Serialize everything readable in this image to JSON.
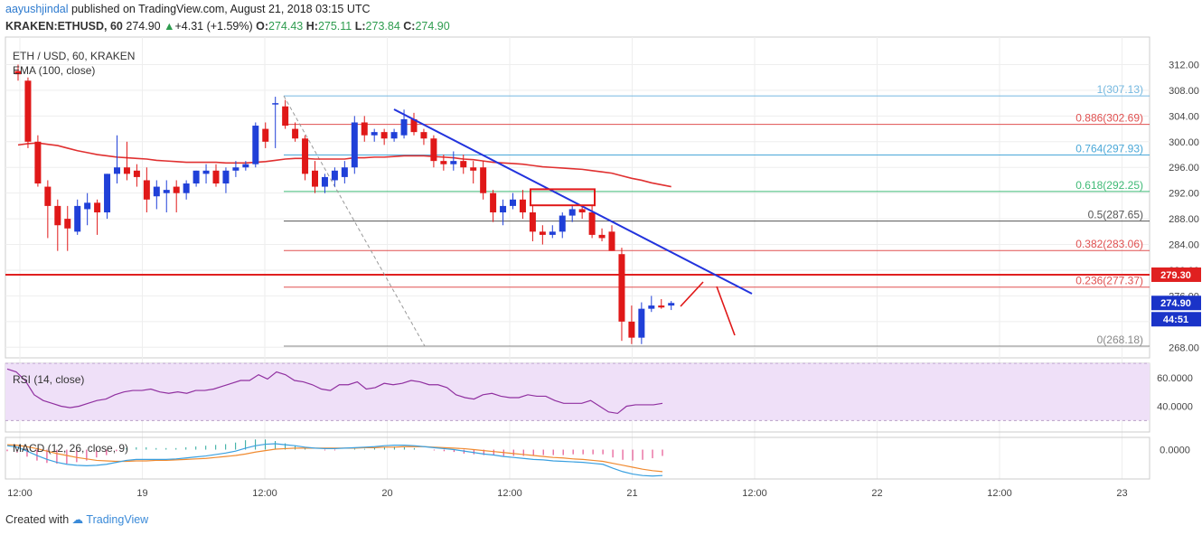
{
  "header": {
    "author": "aayushjindal",
    "published_text": "published on TradingView.com, August 21, 2018 03:15 UTC",
    "symbol_line": "KRAKEN:ETHUSD, 60",
    "last": "274.90",
    "change_arrow": "▲",
    "change": "+4.31 (+1.59%)",
    "o_label": "O:",
    "o": "274.43",
    "h_label": "H:",
    "h": "275.11",
    "l_label": "L:",
    "l": "273.84",
    "c_label": "C:",
    "c": "274.90"
  },
  "footer": {
    "created_with": "Created with",
    "brand": "TradingView"
  },
  "chart_data": [
    {
      "type": "candlestick",
      "title": "ETH / USD, 60, KRAKEN",
      "indicator_label": "EMA (100, close)",
      "y_ticks": [
        "312.00",
        "308.00",
        "304.00",
        "300.00",
        "296.00",
        "292.00",
        "288.00",
        "284.00",
        "280.00",
        "276.00",
        "272.00",
        "268.00"
      ],
      "ylim": [
        267,
        313.5
      ],
      "x_ticks": [
        "12:00",
        "19",
        "12:00",
        "20",
        "12:00",
        "21",
        "12:00",
        "22",
        "12:00",
        "23"
      ],
      "price_tags": {
        "resistance": "279.30",
        "last": "274.90",
        "countdown": "44:51"
      },
      "resistance_level": 279.3,
      "fibonacci": [
        {
          "label": "1(307.13)",
          "value": 307.13,
          "color": "#74b8e0"
        },
        {
          "label": "0.886(302.69)",
          "value": 302.69,
          "color": "#e05050"
        },
        {
          "label": "0.764(297.93)",
          "value": 297.93,
          "color": "#4aa8d8"
        },
        {
          "label": "0.618(292.25)",
          "value": 292.25,
          "color": "#3fba76"
        },
        {
          "label": "0.5(287.65)",
          "value": 287.65,
          "color": "#555555"
        },
        {
          "label": "0.382(283.06)",
          "value": 283.06,
          "color": "#e05050"
        },
        {
          "label": "0.236(277.37)",
          "value": 277.37,
          "color": "#e05050"
        },
        {
          "label": "0(268.18)",
          "value": 268.18,
          "color": "#888888"
        }
      ],
      "candles": [
        {
          "o": 311,
          "h": 312,
          "l": 309.5,
          "c": 310.5
        },
        {
          "o": 309.5,
          "h": 310,
          "l": 299,
          "c": 300
        },
        {
          "o": 300,
          "h": 301,
          "l": 293,
          "c": 293.5
        },
        {
          "o": 293,
          "h": 294,
          "l": 285,
          "c": 290
        },
        {
          "o": 290,
          "h": 291,
          "l": 283,
          "c": 287
        },
        {
          "o": 288,
          "h": 290,
          "l": 283,
          "c": 286.5
        },
        {
          "o": 286,
          "h": 291,
          "l": 285.5,
          "c": 290
        },
        {
          "o": 289.5,
          "h": 292,
          "l": 287,
          "c": 290.5
        },
        {
          "o": 290.5,
          "h": 291,
          "l": 285.5,
          "c": 289
        },
        {
          "o": 289,
          "h": 295,
          "l": 288,
          "c": 295
        },
        {
          "o": 295,
          "h": 301,
          "l": 293.5,
          "c": 296
        },
        {
          "o": 296,
          "h": 300,
          "l": 294,
          "c": 295
        },
        {
          "o": 295.5,
          "h": 296.5,
          "l": 293,
          "c": 294.5
        },
        {
          "o": 294,
          "h": 296,
          "l": 289,
          "c": 291
        },
        {
          "o": 291.5,
          "h": 294,
          "l": 289.5,
          "c": 293
        },
        {
          "o": 292,
          "h": 294,
          "l": 289,
          "c": 292.5
        },
        {
          "o": 293,
          "h": 294,
          "l": 289,
          "c": 292
        },
        {
          "o": 292,
          "h": 294,
          "l": 291,
          "c": 293.5
        },
        {
          "o": 293.5,
          "h": 295.5,
          "l": 293,
          "c": 295.5
        },
        {
          "o": 295,
          "h": 296.5,
          "l": 293.5,
          "c": 295.5
        },
        {
          "o": 295.5,
          "h": 296.5,
          "l": 293,
          "c": 293.5
        },
        {
          "o": 293.5,
          "h": 296,
          "l": 292,
          "c": 295.5
        },
        {
          "o": 295.5,
          "h": 297,
          "l": 294.5,
          "c": 296
        },
        {
          "o": 296,
          "h": 297,
          "l": 295.5,
          "c": 296.5
        },
        {
          "o": 296.5,
          "h": 303,
          "l": 296,
          "c": 302.5
        },
        {
          "o": 302,
          "h": 303,
          "l": 299,
          "c": 300
        },
        {
          "o": 306,
          "h": 307,
          "l": 299,
          "c": 306
        },
        {
          "o": 305.5,
          "h": 306.5,
          "l": 302,
          "c": 302.5
        },
        {
          "o": 302,
          "h": 303,
          "l": 300,
          "c": 300.5
        },
        {
          "o": 300.5,
          "h": 301,
          "l": 294,
          "c": 295
        },
        {
          "o": 295.5,
          "h": 297,
          "l": 292,
          "c": 293
        },
        {
          "o": 293,
          "h": 295,
          "l": 292,
          "c": 294.5
        },
        {
          "o": 294,
          "h": 296,
          "l": 293,
          "c": 295.5
        },
        {
          "o": 294.5,
          "h": 297,
          "l": 293.5,
          "c": 296
        },
        {
          "o": 296,
          "h": 304,
          "l": 295,
          "c": 303
        },
        {
          "o": 303,
          "h": 304,
          "l": 300,
          "c": 301
        },
        {
          "o": 301,
          "h": 302,
          "l": 300,
          "c": 301.5
        },
        {
          "o": 301.5,
          "h": 302,
          "l": 299.5,
          "c": 300.5
        },
        {
          "o": 300.5,
          "h": 302,
          "l": 300,
          "c": 301.5
        },
        {
          "o": 301,
          "h": 305,
          "l": 300.5,
          "c": 303.5
        },
        {
          "o": 303.5,
          "h": 304.5,
          "l": 301,
          "c": 301.5
        },
        {
          "o": 301.5,
          "h": 302,
          "l": 299.5,
          "c": 300.5
        },
        {
          "o": 300.5,
          "h": 301,
          "l": 296,
          "c": 297
        },
        {
          "o": 297,
          "h": 298,
          "l": 295.5,
          "c": 296.5
        },
        {
          "o": 296.5,
          "h": 298.5,
          "l": 295.5,
          "c": 297
        },
        {
          "o": 297,
          "h": 298,
          "l": 295,
          "c": 296
        },
        {
          "o": 296,
          "h": 297,
          "l": 293.5,
          "c": 295.5
        },
        {
          "o": 296,
          "h": 297,
          "l": 291,
          "c": 292
        },
        {
          "o": 292,
          "h": 292.5,
          "l": 287.5,
          "c": 289
        },
        {
          "o": 289,
          "h": 291,
          "l": 287,
          "c": 290
        },
        {
          "o": 290,
          "h": 292,
          "l": 289.5,
          "c": 291
        },
        {
          "o": 291,
          "h": 292.5,
          "l": 288,
          "c": 289
        },
        {
          "o": 289,
          "h": 290,
          "l": 284.5,
          "c": 286
        },
        {
          "o": 286,
          "h": 287,
          "l": 284,
          "c": 285.5
        },
        {
          "o": 285.5,
          "h": 287,
          "l": 285,
          "c": 286
        },
        {
          "o": 286,
          "h": 289,
          "l": 285,
          "c": 288.5
        },
        {
          "o": 288.5,
          "h": 290,
          "l": 287.5,
          "c": 289.5
        },
        {
          "o": 289.5,
          "h": 290,
          "l": 288,
          "c": 289
        },
        {
          "o": 289,
          "h": 290,
          "l": 285,
          "c": 285.5
        },
        {
          "o": 285.5,
          "h": 286.5,
          "l": 284.5,
          "c": 285
        },
        {
          "o": 286,
          "h": 287,
          "l": 283,
          "c": 283
        },
        {
          "o": 282.5,
          "h": 283.5,
          "l": 269,
          "c": 272
        },
        {
          "o": 272,
          "h": 274.5,
          "l": 268.5,
          "c": 269.5
        },
        {
          "o": 269.5,
          "h": 275,
          "l": 268.5,
          "c": 274
        },
        {
          "o": 274,
          "h": 276,
          "l": 273.5,
          "c": 274.5
        },
        {
          "o": 274.5,
          "h": 275.5,
          "l": 274,
          "c": 274.2
        },
        {
          "o": 274.5,
          "h": 275.2,
          "l": 273.8,
          "c": 274.9
        }
      ],
      "ema": [
        299.5,
        299.7,
        299.8,
        299.6,
        299.4,
        299.0,
        298.6,
        298.3,
        298.0,
        297.8,
        297.6,
        297.5,
        297.4,
        297.3,
        297.1,
        297.0,
        296.9,
        296.8,
        296.8,
        296.8,
        296.8,
        296.7,
        296.7,
        296.7,
        296.8,
        296.9,
        297.1,
        297.3,
        297.4,
        297.4,
        297.3,
        297.3,
        297.3,
        297.3,
        297.5,
        297.5,
        297.6,
        297.6,
        297.7,
        297.8,
        297.8,
        297.8,
        297.7,
        297.6,
        297.5,
        297.3,
        297.2,
        297.0,
        296.8,
        296.7,
        296.6,
        296.5,
        296.3,
        296.1,
        296.0,
        295.9,
        295.8,
        295.7,
        295.5,
        295.3,
        295.1,
        294.7,
        294.3,
        294.0,
        293.6,
        293.3,
        293.0
      ],
      "trendline": {
        "from": [
          436,
          121
        ],
        "to": [
          832,
          325
        ]
      },
      "annotation_box": {
        "x": [
          587,
          658
        ],
        "y": [
          292.6,
          290.1
        ]
      }
    },
    {
      "type": "line",
      "title": "RSI (14, close)",
      "y_ticks": [
        "60.0000",
        "40.0000"
      ],
      "ylim": [
        22,
        70
      ],
      "band": [
        30,
        70
      ],
      "values": [
        66,
        64,
        58,
        48,
        44,
        42,
        40,
        39,
        40,
        42,
        44,
        45,
        48,
        50,
        51,
        51,
        52,
        50,
        49,
        50,
        49,
        51,
        51,
        52,
        54,
        56,
        58,
        58,
        62,
        59,
        64,
        62,
        58,
        57,
        55,
        52,
        51,
        55,
        55,
        57,
        52,
        53,
        56,
        55,
        56,
        58,
        57,
        55,
        55,
        53,
        48,
        46,
        45,
        48,
        49,
        47,
        46,
        46,
        48,
        47,
        47,
        44,
        42,
        42,
        42,
        44,
        40,
        36,
        35,
        40,
        41,
        41,
        41,
        42
      ]
    },
    {
      "type": "line",
      "title": "MACD (12, 26, close, 9)",
      "y_ticks": [
        "0.0000"
      ],
      "ylim": [
        -6,
        2.5
      ],
      "macd": [
        0.8,
        0.5,
        -0.3,
        -1.2,
        -2.0,
        -2.6,
        -3.0,
        -3.2,
        -3.3,
        -3.2,
        -3.0,
        -2.6,
        -2.2,
        -2.0,
        -2.0,
        -2.0,
        -2.0,
        -1.9,
        -1.7,
        -1.5,
        -1.3,
        -1.0,
        -0.7,
        -0.3,
        0.3,
        0.8,
        1.1,
        1.2,
        1.0,
        0.8,
        0.5,
        0.3,
        0.2,
        0.2,
        0.3,
        0.4,
        0.5,
        0.6,
        0.8,
        0.9,
        0.9,
        0.8,
        0.6,
        0.4,
        0.2,
        0.0,
        -0.3,
        -0.6,
        -0.9,
        -1.1,
        -1.4,
        -1.6,
        -1.8,
        -2.0,
        -2.1,
        -2.3,
        -2.4,
        -2.5,
        -2.6,
        -2.8,
        -3.0,
        -3.8,
        -4.5,
        -5.0,
        -5.3,
        -5.4,
        -5.3
      ],
      "signal": [
        1.0,
        0.9,
        0.6,
        0.2,
        -0.3,
        -0.8,
        -1.2,
        -1.6,
        -1.9,
        -2.2,
        -2.3,
        -2.4,
        -2.4,
        -2.3,
        -2.3,
        -2.2,
        -2.2,
        -2.1,
        -2.0,
        -1.9,
        -1.8,
        -1.6,
        -1.4,
        -1.2,
        -0.9,
        -0.5,
        -0.2,
        0.1,
        0.2,
        0.3,
        0.3,
        0.3,
        0.3,
        0.3,
        0.3,
        0.3,
        0.4,
        0.4,
        0.5,
        0.5,
        0.6,
        0.6,
        0.6,
        0.5,
        0.4,
        0.3,
        0.2,
        0.0,
        -0.2,
        -0.4,
        -0.6,
        -0.8,
        -1.0,
        -1.2,
        -1.4,
        -1.6,
        -1.7,
        -1.9,
        -2.0,
        -2.2,
        -2.4,
        -2.8,
        -3.2,
        -3.6,
        -4.0,
        -4.3,
        -4.5
      ]
    }
  ]
}
